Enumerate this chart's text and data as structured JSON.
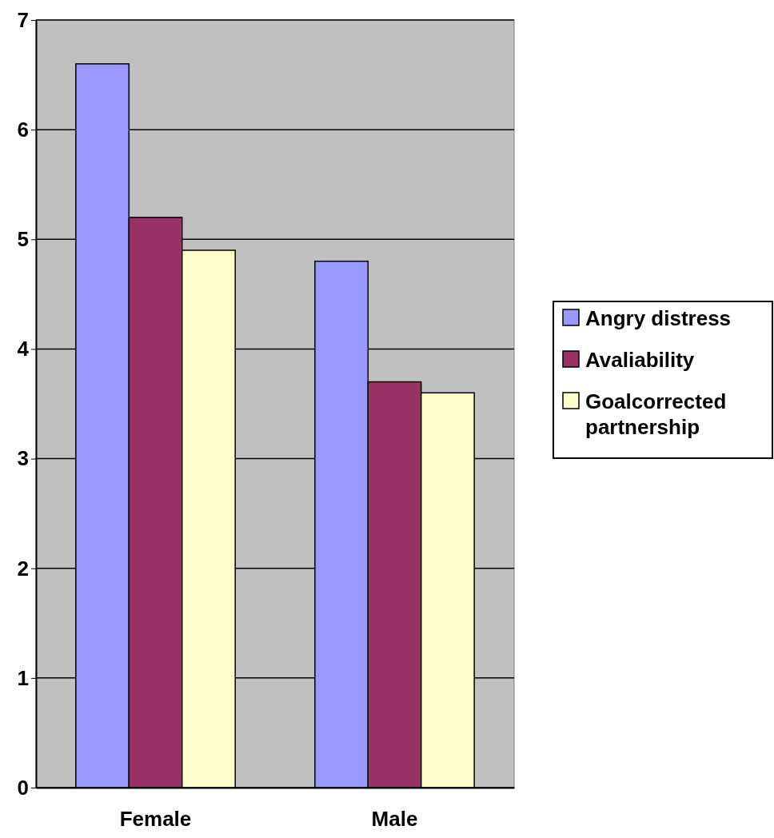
{
  "chart_data": {
    "type": "bar",
    "categories": [
      "Female",
      "Male"
    ],
    "series": [
      {
        "name": "Angry distress",
        "color": "#9999ff",
        "values": [
          6.6,
          4.8
        ]
      },
      {
        "name": "Avaliability",
        "color": "#993366",
        "values": [
          5.2,
          3.7
        ]
      },
      {
        "name": "Goalcorrected partnership",
        "color": "#ffffcc",
        "values": [
          4.9,
          3.6
        ]
      }
    ],
    "ylim": [
      0,
      7
    ],
    "yticks": [
      0,
      1,
      2,
      3,
      4,
      5,
      6,
      7
    ],
    "grid": "y",
    "legend": "right"
  }
}
